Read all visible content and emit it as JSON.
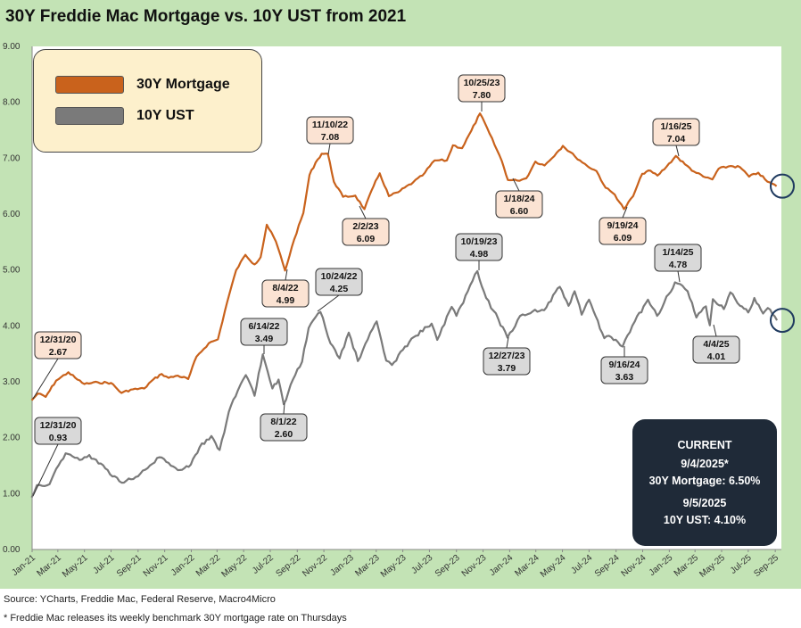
{
  "title": "30Y Freddie Mac Mortgage vs. 10Y UST from 2021",
  "legend": [
    {
      "label": "30Y Mortgage",
      "color": "#c9621c"
    },
    {
      "label": "10Y UST",
      "color": "#7a7a7a"
    }
  ],
  "current": {
    "heading": "CURRENT",
    "date1": "9/4/2025*",
    "line1": "30Y Mortgage: 6.50%",
    "date2": "9/5/2025",
    "line2": "10Y UST: 4.10%"
  },
  "footer": {
    "source": "Source: YCharts, Freddie Mac, Federal Reserve, Macro4Micro",
    "note": "* Freddie Mac releases its weekly benchmark 30Y mortgage rate on Thursdays"
  },
  "chart_data": {
    "type": "line",
    "title": "30Y Freddie Mac Mortgage vs. 10Y UST from 2021",
    "ylim": [
      0,
      9
    ],
    "ytick_labels": [
      "0.00",
      "1.00",
      "2.00",
      "3.00",
      "4.00",
      "5.00",
      "6.00",
      "7.00",
      "8.00",
      "9.00"
    ],
    "x_range": [
      "2021-01-01",
      "2025-09-15"
    ],
    "xtick_labels": [
      {
        "date": "2021-01-01",
        "label": "Jan-21"
      },
      {
        "date": "2021-03-01",
        "label": "Mar-21"
      },
      {
        "date": "2021-05-01",
        "label": "May-21"
      },
      {
        "date": "2021-07-01",
        "label": "Jul-21"
      },
      {
        "date": "2021-09-01",
        "label": "Sep-21"
      },
      {
        "date": "2021-11-01",
        "label": "Nov-21"
      },
      {
        "date": "2022-01-01",
        "label": "Jan-22"
      },
      {
        "date": "2022-03-01",
        "label": "Mar-22"
      },
      {
        "date": "2022-05-01",
        "label": "May-22"
      },
      {
        "date": "2022-07-01",
        "label": "Jul-22"
      },
      {
        "date": "2022-09-01",
        "label": "Sep-22"
      },
      {
        "date": "2022-11-01",
        "label": "Nov-22"
      },
      {
        "date": "2023-01-01",
        "label": "Jan-23"
      },
      {
        "date": "2023-03-01",
        "label": "Mar-23"
      },
      {
        "date": "2023-05-01",
        "label": "May-23"
      },
      {
        "date": "2023-07-01",
        "label": "Jul-23"
      },
      {
        "date": "2023-09-01",
        "label": "Sep-23"
      },
      {
        "date": "2023-11-01",
        "label": "Nov-23"
      },
      {
        "date": "2024-01-01",
        "label": "Jan-24"
      },
      {
        "date": "2024-03-01",
        "label": "Mar-24"
      },
      {
        "date": "2024-05-01",
        "label": "May-24"
      },
      {
        "date": "2024-07-01",
        "label": "Jul-24"
      },
      {
        "date": "2024-09-01",
        "label": "Sep-24"
      },
      {
        "date": "2024-11-01",
        "label": "Nov-24"
      },
      {
        "date": "2025-01-01",
        "label": "Jan-25"
      },
      {
        "date": "2025-03-01",
        "label": "Mar-25"
      },
      {
        "date": "2025-05-01",
        "label": "May-25"
      },
      {
        "date": "2025-07-01",
        "label": "Jul-25"
      },
      {
        "date": "2025-09-01",
        "label": "Sep-25"
      }
    ],
    "series": [
      {
        "name": "30Y Mortgage",
        "color": "#c9621c",
        "points": [
          [
            "2020-12-31",
            2.67
          ],
          [
            "2021-01-14",
            2.79
          ],
          [
            "2021-02-01",
            2.73
          ],
          [
            "2021-02-25",
            3.02
          ],
          [
            "2021-03-25",
            3.17
          ],
          [
            "2021-04-15",
            3.04
          ],
          [
            "2021-05-01",
            2.96
          ],
          [
            "2021-06-01",
            2.99
          ],
          [
            "2021-07-01",
            2.98
          ],
          [
            "2021-07-25",
            2.8
          ],
          [
            "2021-08-15",
            2.86
          ],
          [
            "2021-09-15",
            2.88
          ],
          [
            "2021-10-01",
            3.01
          ],
          [
            "2021-10-25",
            3.14
          ],
          [
            "2021-11-10",
            3.07
          ],
          [
            "2021-12-01",
            3.11
          ],
          [
            "2021-12-25",
            3.05
          ],
          [
            "2022-01-13",
            3.45
          ],
          [
            "2022-02-10",
            3.69
          ],
          [
            "2022-03-03",
            3.76
          ],
          [
            "2022-03-24",
            4.42
          ],
          [
            "2022-04-14",
            5.0
          ],
          [
            "2022-05-05",
            5.27
          ],
          [
            "2022-05-26",
            5.1
          ],
          [
            "2022-06-09",
            5.23
          ],
          [
            "2022-06-23",
            5.81
          ],
          [
            "2022-07-14",
            5.51
          ],
          [
            "2022-08-04",
            4.99
          ],
          [
            "2022-08-25",
            5.55
          ],
          [
            "2022-09-15",
            6.02
          ],
          [
            "2022-09-29",
            6.7
          ],
          [
            "2022-10-13",
            6.92
          ],
          [
            "2022-10-27",
            7.08
          ],
          [
            "2022-11-10",
            7.08
          ],
          [
            "2022-11-24",
            6.58
          ],
          [
            "2022-12-15",
            6.31
          ],
          [
            "2023-01-12",
            6.33
          ],
          [
            "2023-02-02",
            6.09
          ],
          [
            "2023-02-23",
            6.5
          ],
          [
            "2023-03-09",
            6.73
          ],
          [
            "2023-03-30",
            6.32
          ],
          [
            "2023-04-20",
            6.39
          ],
          [
            "2023-05-25",
            6.57
          ],
          [
            "2023-06-15",
            6.69
          ],
          [
            "2023-07-13",
            6.96
          ],
          [
            "2023-08-10",
            6.96
          ],
          [
            "2023-08-24",
            7.23
          ],
          [
            "2023-09-14",
            7.18
          ],
          [
            "2023-10-05",
            7.49
          ],
          [
            "2023-10-25",
            7.8
          ],
          [
            "2023-11-16",
            7.44
          ],
          [
            "2023-12-14",
            6.95
          ],
          [
            "2023-12-28",
            6.61
          ],
          [
            "2024-01-18",
            6.6
          ],
          [
            "2024-02-08",
            6.64
          ],
          [
            "2024-02-29",
            6.94
          ],
          [
            "2024-03-21",
            6.87
          ],
          [
            "2024-04-18",
            7.1
          ],
          [
            "2024-05-02",
            7.22
          ],
          [
            "2024-05-30",
            7.03
          ],
          [
            "2024-06-27",
            6.86
          ],
          [
            "2024-07-18",
            6.77
          ],
          [
            "2024-08-08",
            6.47
          ],
          [
            "2024-08-29",
            6.35
          ],
          [
            "2024-09-19",
            6.09
          ],
          [
            "2024-10-10",
            6.32
          ],
          [
            "2024-10-31",
            6.72
          ],
          [
            "2024-11-14",
            6.78
          ],
          [
            "2024-12-05",
            6.69
          ],
          [
            "2024-12-26",
            6.85
          ],
          [
            "2025-01-16",
            7.04
          ],
          [
            "2025-02-06",
            6.89
          ],
          [
            "2025-02-27",
            6.76
          ],
          [
            "2025-03-20",
            6.67
          ],
          [
            "2025-04-10",
            6.62
          ],
          [
            "2025-04-24",
            6.81
          ],
          [
            "2025-05-22",
            6.86
          ],
          [
            "2025-06-12",
            6.84
          ],
          [
            "2025-07-03",
            6.67
          ],
          [
            "2025-07-24",
            6.74
          ],
          [
            "2025-08-14",
            6.58
          ],
          [
            "2025-09-04",
            6.5
          ]
        ]
      },
      {
        "name": "10Y UST",
        "color": "#7a7a7a",
        "points": [
          [
            "2020-12-31",
            0.93
          ],
          [
            "2021-01-12",
            1.15
          ],
          [
            "2021-02-10",
            1.17
          ],
          [
            "2021-02-25",
            1.44
          ],
          [
            "2021-03-19",
            1.72
          ],
          [
            "2021-04-20",
            1.6
          ],
          [
            "2021-05-12",
            1.69
          ],
          [
            "2021-06-18",
            1.45
          ],
          [
            "2021-07-20",
            1.22
          ],
          [
            "2021-08-05",
            1.23
          ],
          [
            "2021-09-01",
            1.31
          ],
          [
            "2021-10-20",
            1.65
          ],
          [
            "2021-11-10",
            1.55
          ],
          [
            "2021-12-01",
            1.42
          ],
          [
            "2021-12-31",
            1.52
          ],
          [
            "2022-01-20",
            1.83
          ],
          [
            "2022-02-16",
            2.03
          ],
          [
            "2022-03-07",
            1.78
          ],
          [
            "2022-03-28",
            2.46
          ],
          [
            "2022-04-18",
            2.85
          ],
          [
            "2022-05-06",
            3.12
          ],
          [
            "2022-05-26",
            2.75
          ],
          [
            "2022-06-14",
            3.49
          ],
          [
            "2022-07-06",
            2.88
          ],
          [
            "2022-07-20",
            3.04
          ],
          [
            "2022-08-01",
            2.6
          ],
          [
            "2022-08-22",
            3.04
          ],
          [
            "2022-09-12",
            3.36
          ],
          [
            "2022-09-27",
            3.96
          ],
          [
            "2022-10-24",
            4.25
          ],
          [
            "2022-11-16",
            3.69
          ],
          [
            "2022-12-07",
            3.42
          ],
          [
            "2022-12-28",
            3.88
          ],
          [
            "2023-01-18",
            3.37
          ],
          [
            "2023-02-21",
            3.95
          ],
          [
            "2023-03-02",
            4.08
          ],
          [
            "2023-03-24",
            3.38
          ],
          [
            "2023-04-06",
            3.3
          ],
          [
            "2023-05-01",
            3.57
          ],
          [
            "2023-05-26",
            3.8
          ],
          [
            "2023-07-06",
            4.04
          ],
          [
            "2023-07-19",
            3.75
          ],
          [
            "2023-08-21",
            4.34
          ],
          [
            "2023-09-01",
            4.18
          ],
          [
            "2023-09-27",
            4.62
          ],
          [
            "2023-10-19",
            4.98
          ],
          [
            "2023-11-08",
            4.5
          ],
          [
            "2023-12-06",
            4.12
          ],
          [
            "2023-12-27",
            3.79
          ],
          [
            "2024-01-25",
            4.18
          ],
          [
            "2024-02-23",
            4.26
          ],
          [
            "2024-03-20",
            4.28
          ],
          [
            "2024-04-25",
            4.7
          ],
          [
            "2024-05-15",
            4.36
          ],
          [
            "2024-05-29",
            4.62
          ],
          [
            "2024-06-14",
            4.2
          ],
          [
            "2024-07-01",
            4.47
          ],
          [
            "2024-08-05",
            3.78
          ],
          [
            "2024-08-21",
            3.8
          ],
          [
            "2024-09-16",
            3.63
          ],
          [
            "2024-10-14",
            4.08
          ],
          [
            "2024-11-13",
            4.47
          ],
          [
            "2024-12-04",
            4.18
          ],
          [
            "2024-12-31",
            4.57
          ],
          [
            "2025-01-14",
            4.78
          ],
          [
            "2025-02-12",
            4.62
          ],
          [
            "2025-03-04",
            4.15
          ],
          [
            "2025-03-26",
            4.35
          ],
          [
            "2025-04-04",
            4.01
          ],
          [
            "2025-04-11",
            4.48
          ],
          [
            "2025-05-06",
            4.3
          ],
          [
            "2025-05-21",
            4.6
          ],
          [
            "2025-06-12",
            4.36
          ],
          [
            "2025-07-01",
            4.24
          ],
          [
            "2025-07-15",
            4.5
          ],
          [
            "2025-08-04",
            4.22
          ],
          [
            "2025-08-15",
            4.32
          ],
          [
            "2025-09-05",
            4.1
          ]
        ]
      }
    ],
    "annotations": [
      {
        "series": 0,
        "date": "2020-12-31",
        "value": 2.67,
        "l1": "12/31/20",
        "l2": "2.67",
        "bx": 65,
        "by": 387,
        "ax": 37,
        "ay": 447,
        "fill": "#fbe3d3"
      },
      {
        "series": 0,
        "date": "2022-08-04",
        "value": 4.99,
        "l1": "8/4/22",
        "l2": "4.99",
        "bx": 320,
        "by": 329,
        "ax": 322,
        "ay": 302,
        "fill": "#fbe3d3"
      },
      {
        "series": 0,
        "date": "2022-11-10",
        "value": 7.08,
        "l1": "11/10/22",
        "l2": "7.08",
        "bx": 370,
        "by": 146,
        "ax": 368,
        "ay": 173,
        "fill": "#fbe3d3"
      },
      {
        "series": 0,
        "date": "2023-02-02",
        "value": 6.09,
        "l1": "2/2/23",
        "l2": "6.09",
        "bx": 410,
        "by": 260,
        "ax": 403,
        "ay": 231,
        "fill": "#fbe3d3"
      },
      {
        "series": 0,
        "date": "2023-10-25",
        "value": 7.8,
        "l1": "10/25/23",
        "l2": "7.80",
        "bx": 540,
        "by": 99,
        "ax": 540,
        "ay": 125,
        "fill": "#fbe3d3"
      },
      {
        "series": 0,
        "date": "2024-01-18",
        "value": 6.6,
        "l1": "1/18/24",
        "l2": "6.60",
        "bx": 582,
        "by": 229,
        "ax": 575,
        "ay": 200,
        "fill": "#fbe3d3"
      },
      {
        "series": 0,
        "date": "2024-09-19",
        "value": 6.09,
        "l1": "9/19/24",
        "l2": "6.09",
        "bx": 698,
        "by": 259,
        "ax": 703,
        "ay": 232,
        "fill": "#fbe3d3"
      },
      {
        "series": 0,
        "date": "2025-01-16",
        "value": 7.04,
        "l1": "1/16/25",
        "l2": "7.04",
        "bx": 758,
        "by": 148,
        "ax": 761,
        "ay": 175,
        "fill": "#fbe3d3"
      },
      {
        "series": 1,
        "date": "2020-12-31",
        "value": 0.93,
        "l1": "12/31/20",
        "l2": "0.93",
        "bx": 65,
        "by": 483,
        "ax": 37,
        "ay": 556,
        "fill": "#d9d9d9"
      },
      {
        "series": 1,
        "date": "2022-06-14",
        "value": 3.49,
        "l1": "6/14/22",
        "l2": "3.49",
        "bx": 296,
        "by": 372,
        "ax": 296,
        "ay": 397,
        "fill": "#d9d9d9"
      },
      {
        "series": 1,
        "date": "2022-08-01",
        "value": 2.6,
        "l1": "8/1/22",
        "l2": "2.60",
        "bx": 318,
        "by": 479,
        "ax": 319,
        "ay": 452,
        "fill": "#d9d9d9"
      },
      {
        "series": 1,
        "date": "2022-10-24",
        "value": 4.25,
        "l1": "10/24/22",
        "l2": "4.25",
        "bx": 380,
        "by": 316,
        "ax": 356,
        "ay": 349,
        "fill": "#d9d9d9"
      },
      {
        "series": 1,
        "date": "2023-10-19",
        "value": 4.98,
        "l1": "10/19/23",
        "l2": "4.98",
        "bx": 537,
        "by": 277,
        "ax": 537,
        "ay": 303,
        "fill": "#d9d9d9"
      },
      {
        "series": 1,
        "date": "2023-12-27",
        "value": 3.79,
        "l1": "12/27/23",
        "l2": "3.79",
        "bx": 568,
        "by": 405,
        "ax": 570,
        "ay": 378,
        "fill": "#d9d9d9"
      },
      {
        "series": 1,
        "date": "2024-09-16",
        "value": 3.63,
        "l1": "9/16/24",
        "l2": "3.63",
        "bx": 700,
        "by": 415,
        "ax": 700,
        "ay": 388,
        "fill": "#d9d9d9"
      },
      {
        "series": 1,
        "date": "2025-01-14",
        "value": 4.78,
        "l1": "1/14/25",
        "l2": "4.78",
        "bx": 760,
        "by": 289,
        "ax": 762,
        "ay": 316,
        "fill": "#d9d9d9"
      },
      {
        "series": 1,
        "date": "2025-04-04",
        "value": 4.01,
        "l1": "4/4/25",
        "l2": "4.01",
        "bx": 803,
        "by": 392,
        "ax": 800,
        "ay": 364,
        "fill": "#d9d9d9"
      }
    ],
    "current_markers": [
      {
        "series": 0,
        "date": "2025-09-04",
        "value": 6.5
      },
      {
        "series": 1,
        "date": "2025-09-05",
        "value": 4.1
      }
    ],
    "grid": false,
    "legend_position": "top-left"
  }
}
